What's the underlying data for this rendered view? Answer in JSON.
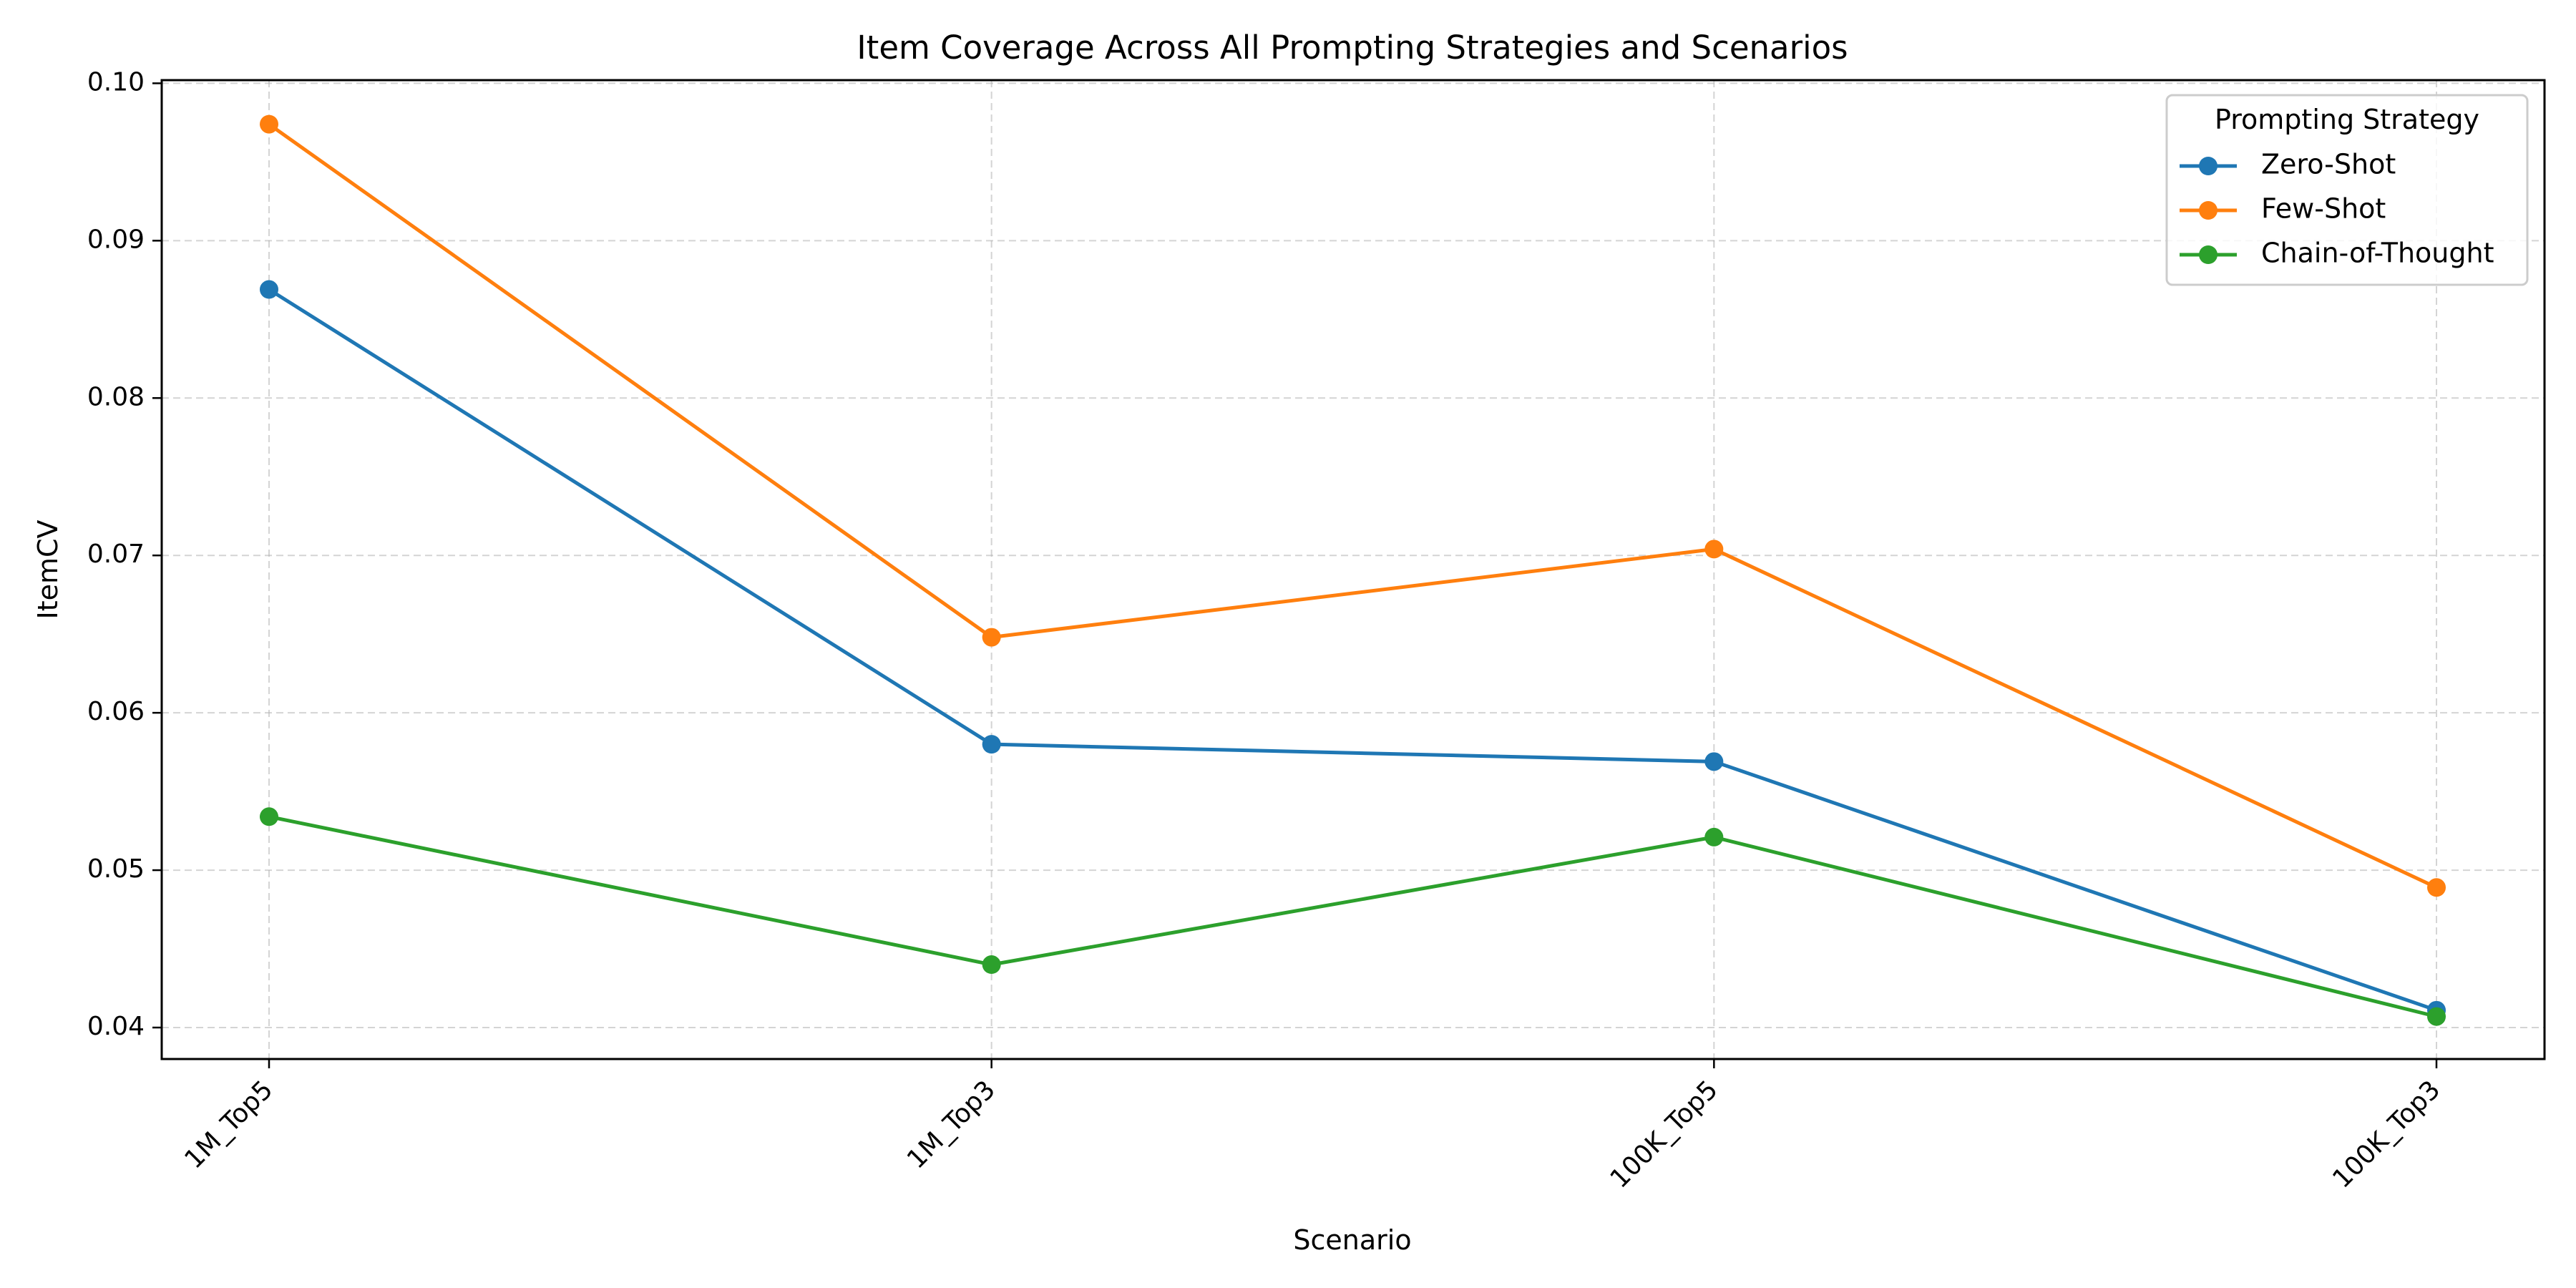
{
  "chart_data": {
    "type": "line",
    "title": "Item Coverage Across All Prompting Strategies and Scenarios",
    "xlabel": "Scenario",
    "ylabel": "ItemCV",
    "categories": [
      "1M_Top5",
      "1M_Top3",
      "100K_Top5",
      "100K_Top3"
    ],
    "y_ticks": [
      "0.04",
      "0.05",
      "0.06",
      "0.07",
      "0.08",
      "0.09",
      "0.10"
    ],
    "ylim": [
      0.038,
      0.1002
    ],
    "grid": true,
    "legend": {
      "title": "Prompting Strategy",
      "placement": "top-right"
    },
    "series": [
      {
        "name": "Zero-Shot",
        "color": "#1f77b4",
        "values": [
          0.0869,
          0.058,
          0.0569,
          0.0411
        ]
      },
      {
        "name": "Few-Shot",
        "color": "#ff7f0e",
        "values": [
          0.0974,
          0.0648,
          0.0704,
          0.0489
        ]
      },
      {
        "name": "Chain-of-Thought",
        "color": "#2ca02c",
        "values": [
          0.0534,
          0.044,
          0.0521,
          0.0407
        ]
      }
    ]
  }
}
